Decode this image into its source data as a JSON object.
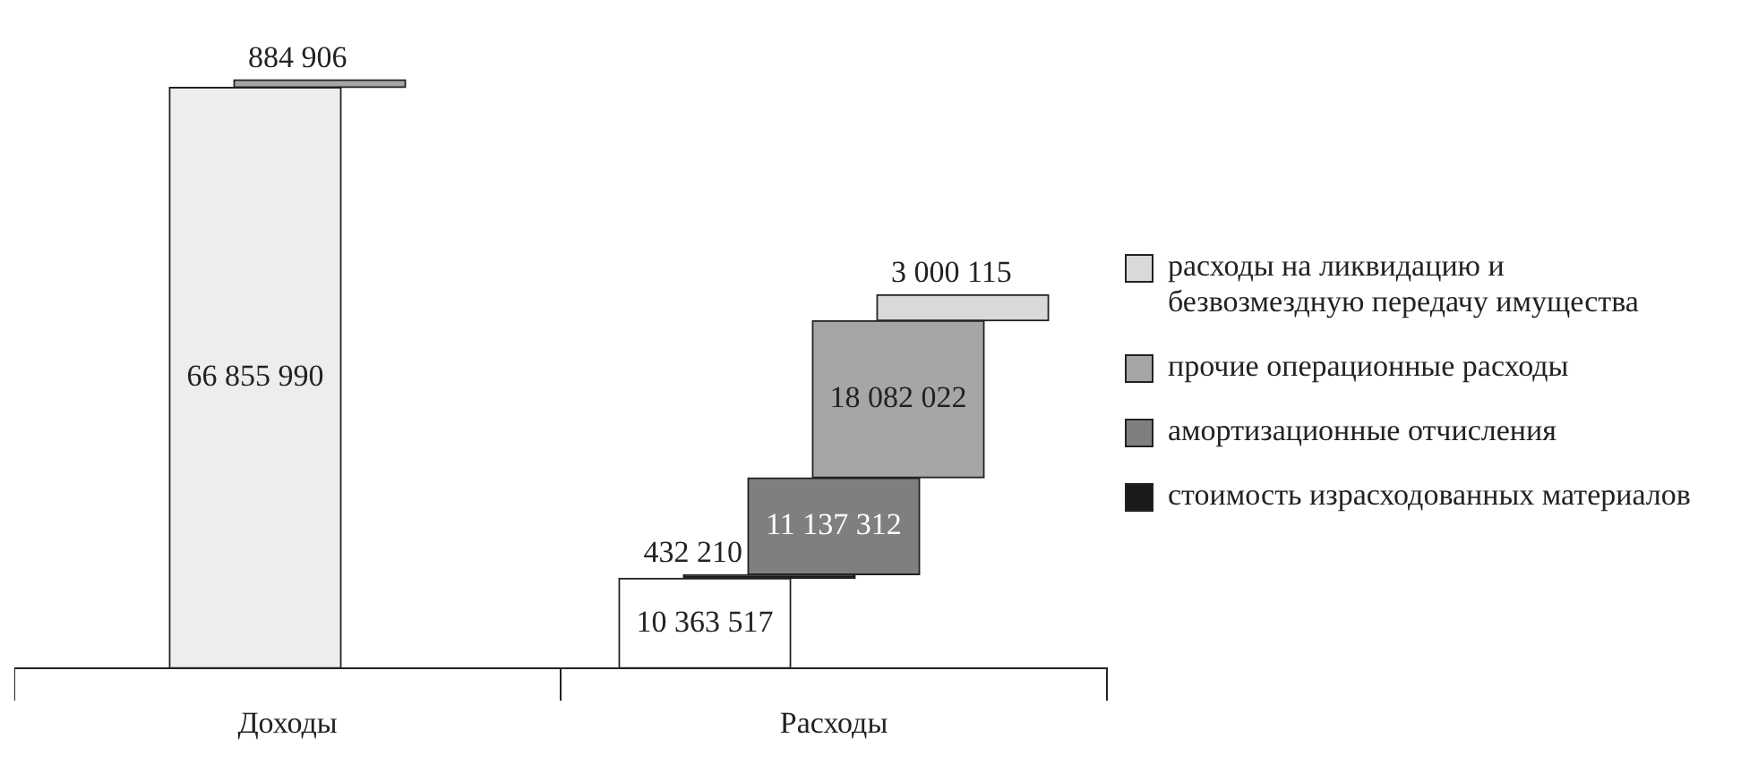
{
  "chart_data": {
    "type": "bar",
    "categories": [
      "Доходы",
      "Расходы"
    ],
    "legend": "right",
    "stacked": true,
    "series": [
      {
        "color": "#ededed",
        "values": [
          66855990,
          null
        ],
        "value_labels": [
          "66 855 990",
          null
        ]
      },
      {
        "color": "#a6a6a6",
        "values": [
          884906,
          null
        ],
        "value_labels": [
          "884 906",
          null
        ]
      },
      {
        "color": "#ffffff",
        "values": [
          null,
          10363517
        ],
        "value_labels": [
          null,
          "10 363 517"
        ]
      },
      {
        "name": "стоимость израсходованных материалов",
        "color": "#1a1a1a",
        "values": [
          null,
          432210
        ],
        "value_labels": [
          null,
          "432 210"
        ]
      },
      {
        "name": "амортизационные отчисления",
        "color": "#7f7f7f",
        "values": [
          null,
          11137312
        ],
        "value_labels": [
          null,
          "11 137 312"
        ]
      },
      {
        "name": "прочие операционные расходы",
        "color": "#a6a6a6",
        "values": [
          null,
          18082022
        ],
        "value_labels": [
          null,
          "18 082 022"
        ]
      },
      {
        "name": "расходы на ликвидацию и безвозмездную передачу имущества",
        "color": "#d9d9d9",
        "values": [
          null,
          3000115
        ],
        "value_labels": [
          null,
          "3 000 115"
        ]
      }
    ]
  }
}
